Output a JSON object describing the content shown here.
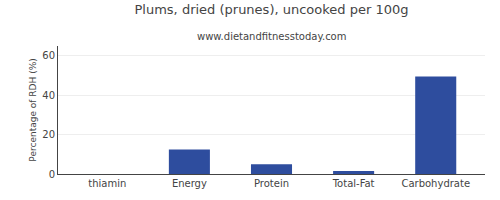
{
  "chart_data": {
    "type": "bar",
    "title": "Plums, dried (prunes), uncooked per 100g",
    "subtitle": "www.dietandfitnesstoday.com",
    "categories": [
      "thiamin",
      "Energy",
      "Protein",
      "Total-Fat",
      "Carbohydrate"
    ],
    "values": [
      0.0,
      12.5,
      5.0,
      1.5,
      49.5
    ],
    "color": "#2e4d9e",
    "ylabel": "Percentage of RDH (%)",
    "ylim": [
      0,
      65
    ],
    "yticks": [
      0,
      20,
      40,
      60
    ],
    "grid": true
  }
}
